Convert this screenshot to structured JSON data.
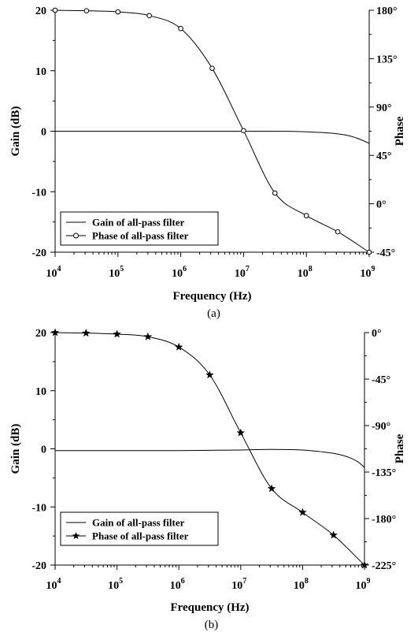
{
  "chart_data": [
    {
      "type": "line",
      "caption": "(a)",
      "xlabel": "Frequency (Hz)",
      "ylabel": "Gain (dB)",
      "y2label": "Phase",
      "x_scale": "log",
      "xlim": [
        10000,
        1000000000
      ],
      "x_ticks": [
        10000,
        100000,
        1000000,
        10000000,
        100000000,
        1000000000
      ],
      "x_tick_labels": [
        {
          "base": "10",
          "exp": "4"
        },
        {
          "base": "10",
          "exp": "5"
        },
        {
          "base": "10",
          "exp": "6"
        },
        {
          "base": "10",
          "exp": "7"
        },
        {
          "base": "10",
          "exp": "8"
        },
        {
          "base": "10",
          "exp": "9"
        }
      ],
      "ylim": [
        -20,
        20
      ],
      "y_ticks": [
        -20,
        -10,
        0,
        10,
        20
      ],
      "y_tick_labels": [
        "-20",
        "-10",
        "0",
        "10",
        "20"
      ],
      "y2lim": [
        -45,
        180
      ],
      "y2_ticks": [
        -45,
        0,
        45,
        90,
        135,
        180
      ],
      "y2_tick_labels": [
        "-45°",
        "0°",
        "45°",
        "90°",
        "135°",
        "180°"
      ],
      "legend_position": "bottom-left",
      "grid": false,
      "series": [
        {
          "name": "Gain of all-pass filter",
          "axis": "left",
          "marker": "none",
          "x": [
            10000,
            100000,
            1000000,
            10000000,
            30000000,
            100000000,
            300000000,
            500000000,
            700000000,
            1000000000
          ],
          "y": [
            0,
            0,
            0,
            0,
            0,
            -0.1,
            -0.4,
            -0.8,
            -1.3,
            -2.0
          ]
        },
        {
          "name": "Phase of all-pass filter",
          "axis": "right",
          "marker": "circle",
          "x": [
            10000,
            31600,
            100000,
            316000,
            1000000,
            3160000,
            10000000,
            31600000,
            100000000,
            316000000,
            1000000000
          ],
          "y": [
            180,
            179.5,
            178.5,
            175,
            163,
            126,
            68,
            10,
            -11,
            -26,
            -45
          ]
        }
      ]
    },
    {
      "type": "line",
      "caption": "(b)",
      "xlabel": "Frequency (Hz)",
      "ylabel": "Gain (dB)",
      "y2label": "Phase",
      "x_scale": "log",
      "xlim": [
        10000,
        1000000000
      ],
      "x_ticks": [
        10000,
        100000,
        1000000,
        10000000,
        100000000,
        1000000000
      ],
      "x_tick_labels": [
        {
          "base": "10",
          "exp": "4"
        },
        {
          "base": "10",
          "exp": "5"
        },
        {
          "base": "10",
          "exp": "6"
        },
        {
          "base": "10",
          "exp": "7"
        },
        {
          "base": "10",
          "exp": "8"
        },
        {
          "base": "10",
          "exp": "9"
        }
      ],
      "ylim": [
        -20,
        20
      ],
      "y_ticks": [
        -20,
        -10,
        0,
        10,
        20
      ],
      "y_tick_labels": [
        "-20",
        "-10",
        "0",
        "10",
        "20"
      ],
      "y2lim": [
        -225,
        0
      ],
      "y2_ticks": [
        -225,
        -180,
        -135,
        -90,
        -45,
        0
      ],
      "y2_tick_labels": [
        "-225°",
        "-180°",
        "-135°",
        "-90°",
        "-45°",
        "0°"
      ],
      "legend_position": "bottom-left",
      "grid": false,
      "series": [
        {
          "name": "Gain of all-pass filter",
          "axis": "left",
          "marker": "none",
          "x": [
            10000,
            100000,
            1000000,
            10000000,
            30000000,
            100000000,
            200000000,
            400000000,
            600000000,
            800000000,
            1000000000
          ],
          "y": [
            -0.3,
            -0.3,
            -0.3,
            -0.2,
            -0.1,
            -0.2,
            -0.5,
            -1.0,
            -1.6,
            -2.3,
            -3.2
          ]
        },
        {
          "name": "Phase of all-pass filter",
          "axis": "right",
          "marker": "star",
          "x": [
            10000,
            31600,
            100000,
            316000,
            1000000,
            3160000,
            10000000,
            31600000,
            100000000,
            316000000,
            1000000000
          ],
          "y": [
            0,
            -0.5,
            -1.5,
            -4,
            -14,
            -41,
            -97,
            -151,
            -174,
            -196,
            -225
          ]
        }
      ]
    }
  ]
}
